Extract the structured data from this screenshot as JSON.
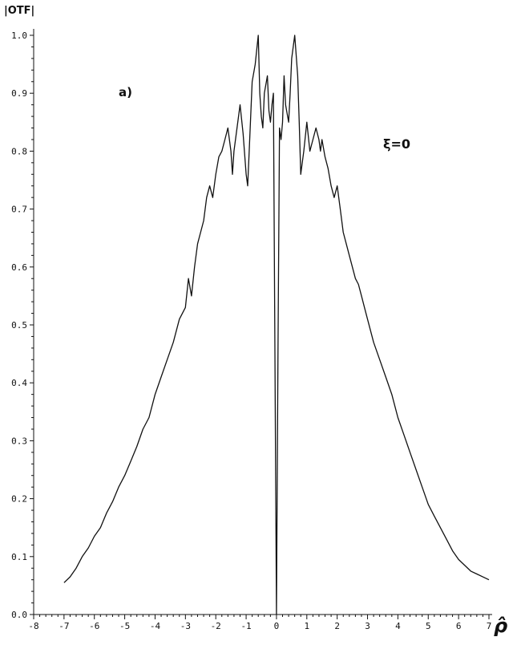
{
  "chart_data": {
    "type": "line",
    "ylabel": "|OTF|",
    "xlabel": "ρ̂",
    "panel_label": "a)",
    "annotation": "ξ=0",
    "xlim": [
      -8,
      7
    ],
    "ylim": [
      0,
      1.0
    ],
    "xticks": [
      -8,
      -7,
      -6,
      -5,
      -4,
      -3,
      -2,
      -1,
      0,
      1,
      2,
      3,
      4,
      5,
      6,
      7
    ],
    "xtick_labels": [
      "-8",
      "-7",
      "-6",
      "-5",
      "-4",
      "-3",
      "-2",
      "-1",
      "0",
      "1",
      "2",
      "3",
      "4",
      "5",
      "6",
      "7"
    ],
    "yticks": [
      0.0,
      0.1,
      0.2,
      0.3,
      0.4,
      0.5,
      0.6,
      0.7,
      0.8,
      0.9,
      1.0
    ],
    "ytick_labels": [
      "0.0",
      "0.1",
      "0.2",
      "0.3",
      "0.4",
      "0.5",
      "0.6",
      "0.7",
      "0.8",
      "0.9",
      "1.0"
    ],
    "grid": false,
    "series": [
      {
        "x": [
          -7.0,
          -6.8,
          -6.6,
          -6.4,
          -6.2,
          -6.0,
          -5.8,
          -5.6,
          -5.4,
          -5.2,
          -5.0,
          -4.8,
          -4.6,
          -4.4,
          -4.2,
          -4.0,
          -3.8,
          -3.6,
          -3.4,
          -3.2,
          -3.0,
          -2.9,
          -2.8,
          -2.7,
          -2.6,
          -2.5,
          -2.4,
          -2.3,
          -2.2,
          -2.1,
          -2.0,
          -1.9,
          -1.8,
          -1.7,
          -1.6,
          -1.5,
          -1.45,
          -1.4,
          -1.3,
          -1.2,
          -1.1,
          -1.0,
          -0.95,
          -0.9,
          -0.8,
          -0.7,
          -0.6,
          -0.55,
          -0.5,
          -0.45,
          -0.4,
          -0.3,
          -0.25,
          -0.2,
          -0.15,
          -0.1,
          -0.05,
          0.0,
          0.05,
          0.1,
          0.15,
          0.2,
          0.25,
          0.3,
          0.4,
          0.45,
          0.5,
          0.6,
          0.7,
          0.75,
          0.8,
          0.85,
          0.9,
          1.0,
          1.1,
          1.2,
          1.3,
          1.4,
          1.45,
          1.5,
          1.6,
          1.7,
          1.8,
          1.9,
          2.0,
          2.1,
          2.2,
          2.3,
          2.4,
          2.5,
          2.6,
          2.7,
          2.8,
          2.9,
          3.0,
          3.2,
          3.4,
          3.6,
          3.8,
          4.0,
          4.2,
          4.4,
          4.6,
          4.8,
          5.0,
          5.2,
          5.4,
          5.6,
          5.8,
          6.0,
          6.2,
          6.4,
          6.6,
          6.8,
          7.0
        ],
        "y": [
          0.055,
          0.065,
          0.08,
          0.1,
          0.115,
          0.135,
          0.15,
          0.175,
          0.195,
          0.22,
          0.24,
          0.265,
          0.29,
          0.32,
          0.34,
          0.38,
          0.41,
          0.44,
          0.47,
          0.51,
          0.53,
          0.58,
          0.55,
          0.6,
          0.64,
          0.66,
          0.68,
          0.72,
          0.74,
          0.72,
          0.76,
          0.79,
          0.8,
          0.82,
          0.84,
          0.8,
          0.76,
          0.8,
          0.84,
          0.88,
          0.83,
          0.76,
          0.74,
          0.8,
          0.92,
          0.95,
          1.0,
          0.9,
          0.86,
          0.84,
          0.9,
          0.93,
          0.87,
          0.85,
          0.88,
          0.9,
          0.45,
          0.0,
          0.45,
          0.84,
          0.82,
          0.85,
          0.93,
          0.88,
          0.85,
          0.9,
          0.96,
          1.0,
          0.93,
          0.85,
          0.76,
          0.78,
          0.8,
          0.85,
          0.8,
          0.82,
          0.84,
          0.82,
          0.8,
          0.82,
          0.79,
          0.77,
          0.74,
          0.72,
          0.74,
          0.7,
          0.66,
          0.64,
          0.62,
          0.6,
          0.58,
          0.57,
          0.55,
          0.53,
          0.51,
          0.47,
          0.44,
          0.41,
          0.38,
          0.34,
          0.31,
          0.28,
          0.25,
          0.22,
          0.19,
          0.17,
          0.15,
          0.13,
          0.11,
          0.095,
          0.085,
          0.075,
          0.07,
          0.065,
          0.06
        ]
      }
    ]
  }
}
